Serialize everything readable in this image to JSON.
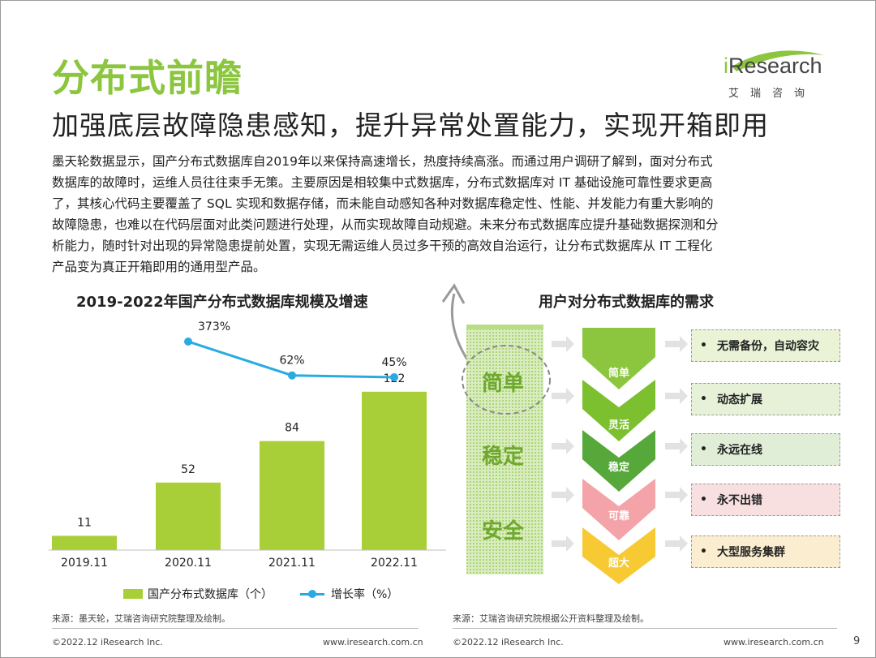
{
  "header": {
    "title": "分布式前瞻",
    "subtitle": "加强底层故障隐患感知，提升异常处置能力，实现开箱即用",
    "logo_main_i": "i",
    "logo_main_rest": "Research",
    "logo_sub": "艾瑞咨询"
  },
  "paragraph": [
    "墨天轮数据显示，国产分布式数据库自2019年以来保持高速增长，热度持续高涨。而通过用户调研了解到，面对分布式",
    "数据库的故障时，运维人员往往束手无策。主要原因是相较集中式数据库，分布式数据库对 IT 基础设施可靠性要求更高",
    "了，其核心代码主要覆盖了 SQL 实现和数据存储，而未能自动感知各种对数据库稳定性、性能、并发能力有重大影响的",
    "故障隐患，也难以在代码层面对此类问题进行处理，从而实现故障自动规避。未来分布式数据库应提升基础数据探测和分",
    "析能力，随时针对出现的异常隐患提前处置，实现无需运维人员过多干预的高效自治运行，让分布式数据库从 IT 工程化",
    "产品变为真正开箱即用的通用型产品。"
  ],
  "left_chart": {
    "title": "2019-2022年国产分布式数据库规模及增速",
    "legend_bar": "国产分布式数据库（个）",
    "legend_line": "增长率（%）",
    "source": "来源：墨天轮，艾瑞咨询研究院整理及绘制。"
  },
  "chart_data": {
    "type": "bar",
    "title": "2019-2022年国产分布式数据库规模及增速",
    "categories": [
      "2019.11",
      "2020.11",
      "2021.11",
      "2022.11"
    ],
    "series": [
      {
        "name": "国产分布式数据库（个）",
        "type": "bar",
        "values": [
          11,
          52,
          84,
          122
        ],
        "labels": [
          "11",
          "52",
          "84",
          "122"
        ],
        "color": "#a8cf38"
      },
      {
        "name": "增长率（%）",
        "type": "line",
        "values": [
          null,
          373,
          62,
          45
        ],
        "labels": [
          "",
          "373%",
          "62%",
          "45%"
        ],
        "color": "#29abe2"
      }
    ],
    "bar_ylim": [
      0,
      130
    ],
    "grid": false,
    "legend_position": "bottom"
  },
  "right_diagram": {
    "title": "用户对分布式数据库的需求",
    "pillars": [
      "简单",
      "稳定",
      "安全"
    ],
    "stages": [
      "简单",
      "灵活",
      "稳定",
      "可靠",
      "超大"
    ],
    "stage_colors": [
      "#8cc63f",
      "#7cbf2f",
      "#56a83a",
      "#f4a3a8",
      "#f7c933"
    ],
    "needs": [
      {
        "dot": "•",
        "label": "无需备份，自动容灾",
        "bg": "#eaf3d6"
      },
      {
        "dot": "•",
        "label": "动态扩展",
        "bg": "#e6f1d8"
      },
      {
        "dot": "•",
        "label": "永远在线",
        "bg": "#e0eed7"
      },
      {
        "dot": "•",
        "label": "永不出错",
        "bg": "#f8dfe0"
      },
      {
        "dot": "•",
        "label": "大型服务集群",
        "bg": "#fbeed0"
      }
    ],
    "source": "来源：艾瑞咨询研究院根据公开资料整理及绘制。"
  },
  "footer": {
    "left_copy": "©2022.12 iResearch Inc.",
    "left_url": "www.iresearch.com.cn",
    "right_copy": "©2022.12 iResearch Inc.",
    "right_url": "www.iresearch.com.cn",
    "page": "9"
  }
}
